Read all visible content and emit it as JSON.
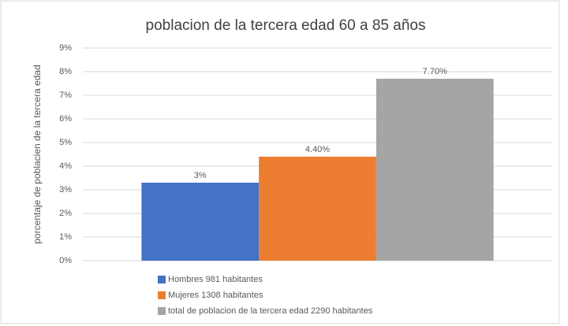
{
  "chart_data": {
    "type": "bar",
    "title": "poblacion de la  tercera edad 60 a 85 años",
    "ylabel": "porcentaje de poblacien de la tercera edad",
    "categories": [
      null
    ],
    "series": [
      {
        "name": "Hombres 981 habitantes",
        "color": "#4472c4",
        "values": [
          3.3
        ],
        "value_labels": [
          "3%"
        ]
      },
      {
        "name": "Mujeres 1308 habitantes",
        "color": "#ed7d31",
        "values": [
          4.4
        ],
        "value_labels": [
          "4.40%"
        ]
      },
      {
        "name": "total de poblacion de la tercera edad 2290 habitantes",
        "color": "#a5a5a5",
        "values": [
          7.7
        ],
        "value_labels": [
          "7.70%"
        ]
      }
    ],
    "ylim": [
      0,
      9
    ],
    "yticks": [
      {
        "value": 0,
        "label": "0%"
      },
      {
        "value": 1,
        "label": "1%"
      },
      {
        "value": 2,
        "label": "2%"
      },
      {
        "value": 3,
        "label": "3%"
      },
      {
        "value": 4,
        "label": "4%"
      },
      {
        "value": 5,
        "label": "5%"
      },
      {
        "value": 6,
        "label": "6%"
      },
      {
        "value": 7,
        "label": "7%"
      },
      {
        "value": 8,
        "label": "8%"
      },
      {
        "value": 9,
        "label": "9%"
      }
    ],
    "grid": true,
    "legend": "bottom-left"
  }
}
